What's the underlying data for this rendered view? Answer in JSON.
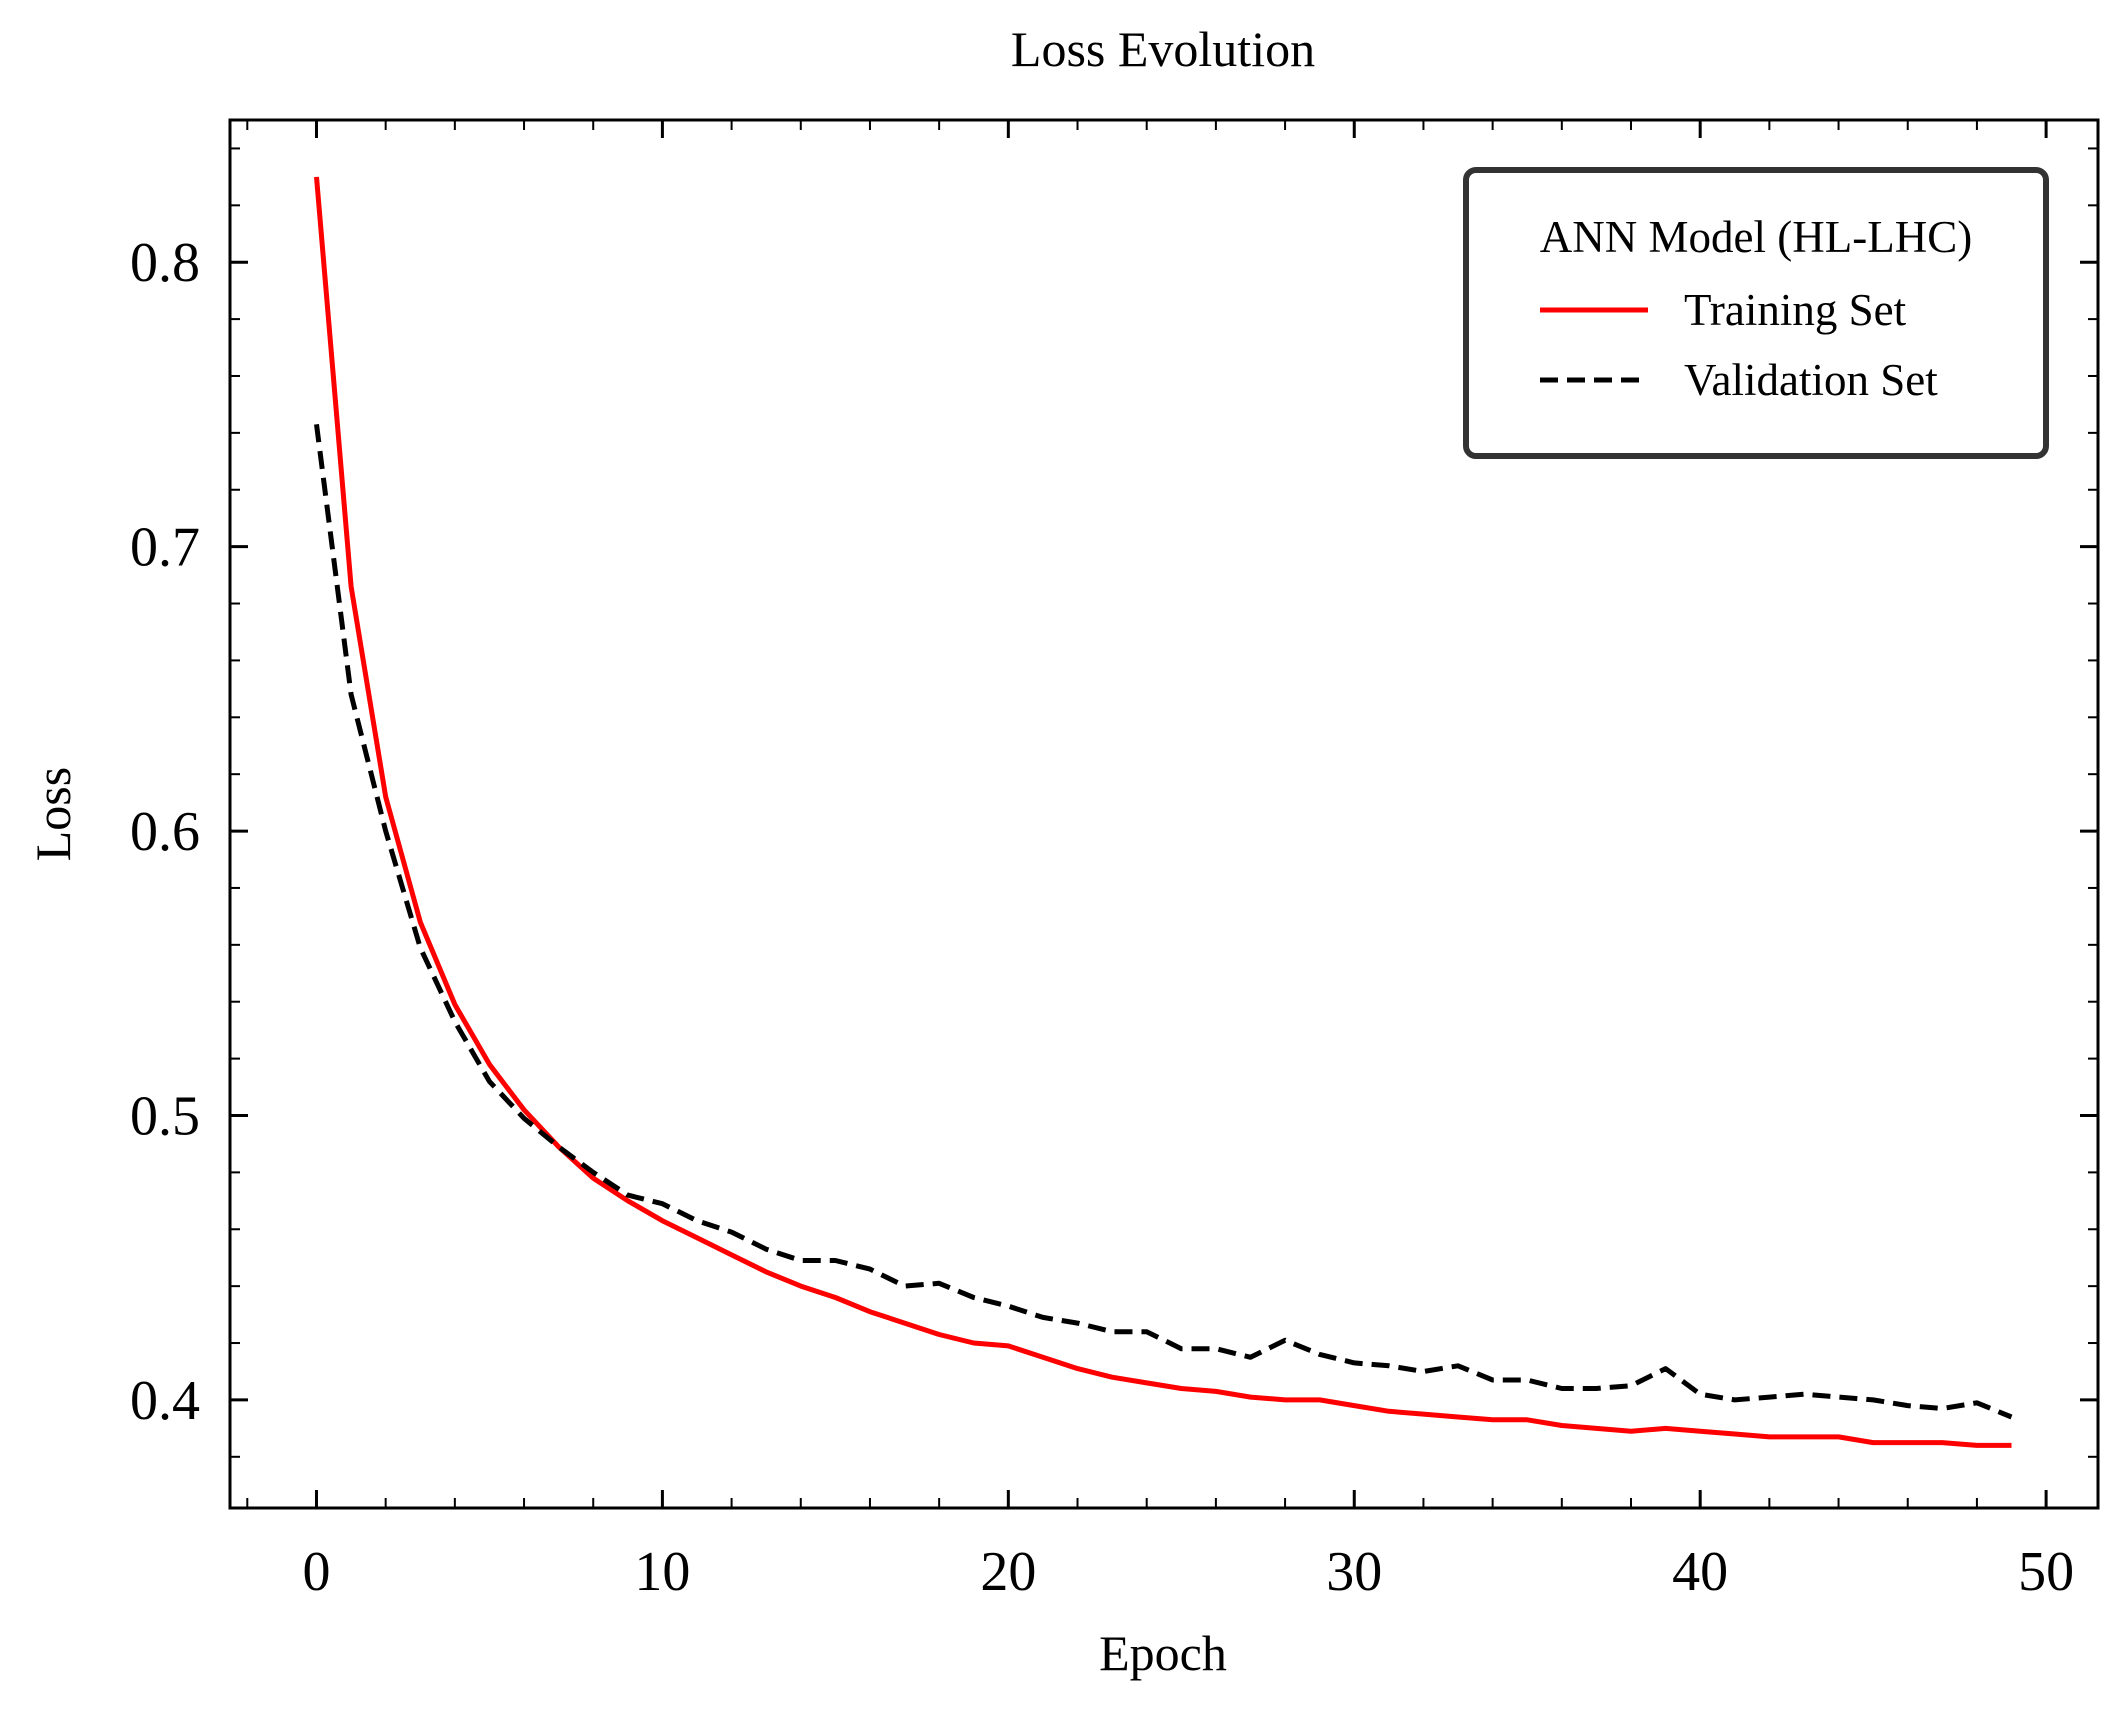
{
  "chart_data": {
    "type": "line",
    "title": "Loss Evolution",
    "xlabel": "Epoch",
    "ylabel": "Loss",
    "xlim": [
      -2.5,
      51.5
    ],
    "ylim": [
      0.362,
      0.85
    ],
    "x_ticks": [
      0,
      10,
      20,
      30,
      40,
      50
    ],
    "x_tick_labels": [
      "0",
      "10",
      "20",
      "30",
      "40",
      "50"
    ],
    "y_ticks": [
      0.4,
      0.5,
      0.6,
      0.7,
      0.8
    ],
    "y_tick_labels": [
      "0.4",
      "0.5",
      "0.6",
      "0.7",
      "0.8"
    ],
    "grid": false,
    "legend": {
      "title": "ANN Model (HL-LHC)",
      "position": "top-right"
    },
    "x": [
      0,
      1,
      2,
      3,
      4,
      5,
      6,
      7,
      8,
      9,
      10,
      11,
      12,
      13,
      14,
      15,
      16,
      17,
      18,
      19,
      20,
      21,
      22,
      23,
      24,
      25,
      26,
      27,
      28,
      29,
      30,
      31,
      32,
      33,
      34,
      35,
      36,
      37,
      38,
      39,
      40,
      41,
      42,
      43,
      44,
      45,
      46,
      47,
      48,
      49
    ],
    "series": [
      {
        "name": "Training Set",
        "color": "#ff0000",
        "style": "solid",
        "values": [
          0.83,
          0.686,
          0.612,
          0.568,
          0.539,
          0.518,
          0.502,
          0.489,
          0.478,
          0.47,
          0.463,
          0.457,
          0.451,
          0.445,
          0.44,
          0.436,
          0.431,
          0.427,
          0.423,
          0.42,
          0.419,
          0.415,
          0.411,
          0.408,
          0.406,
          0.404,
          0.403,
          0.401,
          0.4,
          0.4,
          0.398,
          0.396,
          0.395,
          0.394,
          0.393,
          0.393,
          0.391,
          0.39,
          0.389,
          0.39,
          0.389,
          0.388,
          0.387,
          0.387,
          0.387,
          0.385,
          0.385,
          0.385,
          0.384,
          0.384
        ]
      },
      {
        "name": "Validation Set",
        "color": "#000000",
        "style": "dashed",
        "values": [
          0.743,
          0.648,
          0.6,
          0.559,
          0.533,
          0.512,
          0.499,
          0.489,
          0.48,
          0.472,
          0.469,
          0.463,
          0.459,
          0.453,
          0.449,
          0.449,
          0.446,
          0.44,
          0.441,
          0.436,
          0.433,
          0.429,
          0.427,
          0.424,
          0.424,
          0.418,
          0.418,
          0.415,
          0.421,
          0.416,
          0.413,
          0.412,
          0.41,
          0.412,
          0.407,
          0.407,
          0.404,
          0.404,
          0.405,
          0.411,
          0.402,
          0.4,
          0.401,
          0.402,
          0.401,
          0.4,
          0.398,
          0.397,
          0.399,
          0.394
        ]
      }
    ]
  }
}
